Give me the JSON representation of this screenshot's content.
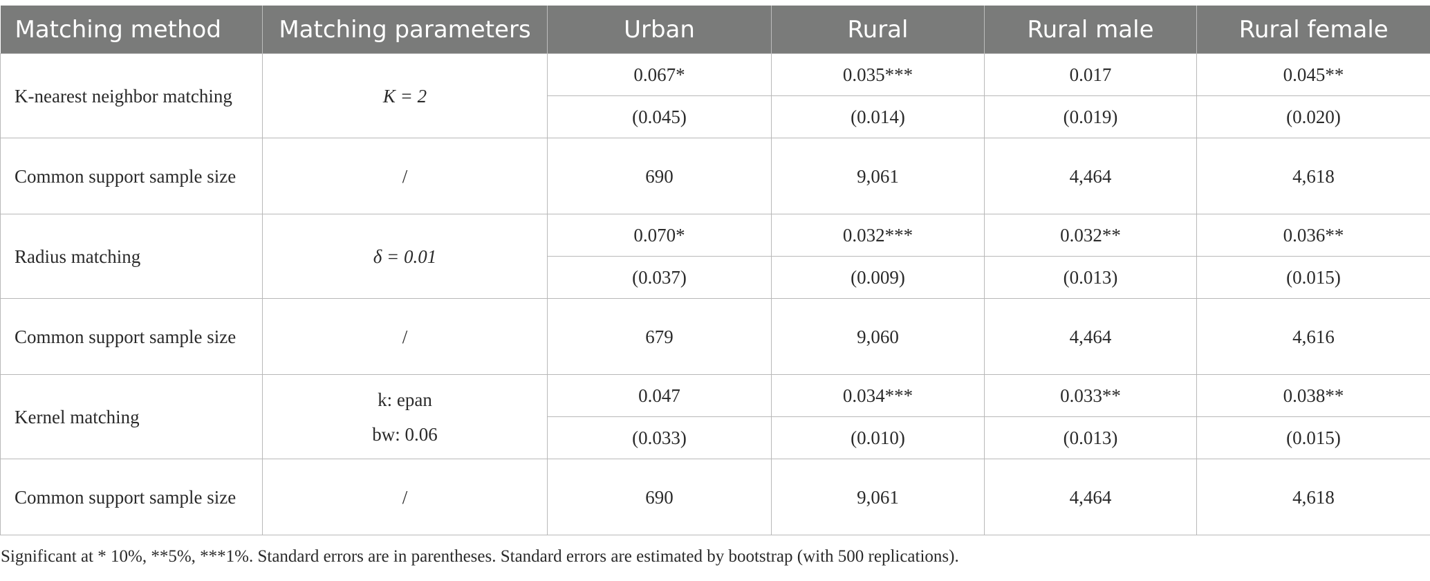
{
  "header": {
    "col_method": "Matching method",
    "col_params": "Matching parameters",
    "col_urban": "Urban",
    "col_rural": "Rural",
    "col_rural_male": "Rural male",
    "col_rural_female": "Rural female"
  },
  "knn": {
    "method": "K-nearest neighbor matching",
    "param": "K = 2",
    "coef": [
      "0.067*",
      "0.035***",
      "0.017",
      "0.045**"
    ],
    "se": [
      "(0.045)",
      "(0.014)",
      "(0.019)",
      "(0.020)"
    ]
  },
  "knn_support": {
    "label": "Common support sample size",
    "param": "/",
    "values": [
      "690",
      "9,061",
      "4,464",
      "4,618"
    ]
  },
  "radius": {
    "method": "Radius matching",
    "param": "δ = 0.01",
    "coef": [
      "0.070*",
      "0.032***",
      "0.032**",
      "0.036**"
    ],
    "se": [
      "(0.037)",
      "(0.009)",
      "(0.013)",
      "(0.015)"
    ]
  },
  "radius_support": {
    "label": "Common support sample size",
    "param": "/",
    "values": [
      "679",
      "9,060",
      "4,464",
      "4,616"
    ]
  },
  "kernel": {
    "method": "Kernel matching",
    "param_line1": "k: epan",
    "param_line2": "bw: 0.06",
    "coef": [
      "0.047",
      "0.034***",
      "0.033**",
      "0.038**"
    ],
    "se": [
      "(0.033)",
      "(0.010)",
      "(0.013)",
      "(0.015)"
    ]
  },
  "kernel_support": {
    "label": "Common support sample size",
    "param": "/",
    "values": [
      "690",
      "9,061",
      "4,464",
      "4,618"
    ]
  },
  "footnote": "Significant at * 10%, **5%, ***1%. Standard errors are in parentheses. Standard errors are estimated by bootstrap (with 500 replications).",
  "colors": {
    "header_bg": "#7a7b7a",
    "header_text": "#ffffff",
    "border": "#b8b8b8"
  }
}
